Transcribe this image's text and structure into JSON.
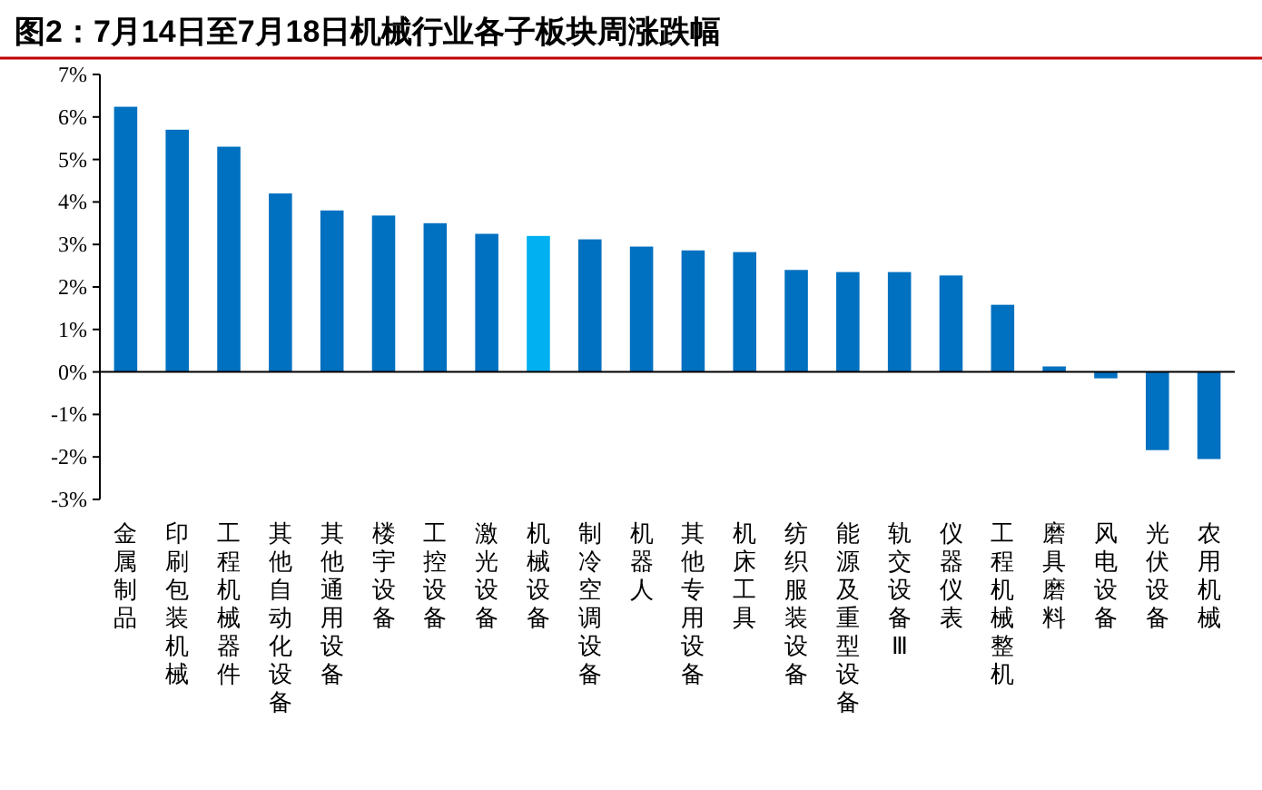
{
  "chart_data": {
    "type": "bar",
    "title": "图2：7月14日至7月18日机械行业各子板块周涨跌幅",
    "categories": [
      "金属制品",
      "印刷包装机械",
      "工程机械器件",
      "其他自动化设备",
      "其他通用设备",
      "楼宇设备",
      "工控设备",
      "激光设备",
      "机械设备",
      "制冷空调设备",
      "机器人",
      "其他专用设备",
      "机床工具",
      "纺织服装设备",
      "能源及重型设备",
      "轨交设备Ⅲ",
      "仪器仪表",
      "工程机械整机",
      "磨具磨料",
      "风电设备",
      "光伏设备",
      "农用机械"
    ],
    "values": [
      6.24,
      5.7,
      5.3,
      4.2,
      3.8,
      3.68,
      3.5,
      3.25,
      3.2,
      3.12,
      2.95,
      2.86,
      2.82,
      2.4,
      2.35,
      2.35,
      2.27,
      1.58,
      0.13,
      -0.15,
      -1.84,
      -2.05
    ],
    "colors": [
      "#0070c0",
      "#0070c0",
      "#0070c0",
      "#0070c0",
      "#0070c0",
      "#0070c0",
      "#0070c0",
      "#0070c0",
      "#00b0f0",
      "#0070c0",
      "#0070c0",
      "#0070c0",
      "#0070c0",
      "#0070c0",
      "#0070c0",
      "#0070c0",
      "#0070c0",
      "#0070c0",
      "#0070c0",
      "#0070c0",
      "#0070c0",
      "#0070c0"
    ],
    "ylim": [
      -3,
      7
    ],
    "yticks": [
      {
        "value": -3,
        "label": "-3%"
      },
      {
        "value": -2,
        "label": "-2%"
      },
      {
        "value": -1,
        "label": "-1%"
      },
      {
        "value": 0,
        "label": "0%"
      },
      {
        "value": 1,
        "label": "1%"
      },
      {
        "value": 2,
        "label": "2%"
      },
      {
        "value": 3,
        "label": "3%"
      },
      {
        "value": 4,
        "label": "4%"
      },
      {
        "value": 5,
        "label": "5%"
      },
      {
        "value": 6,
        "label": "6%"
      },
      {
        "value": 7,
        "label": "7%"
      }
    ]
  }
}
